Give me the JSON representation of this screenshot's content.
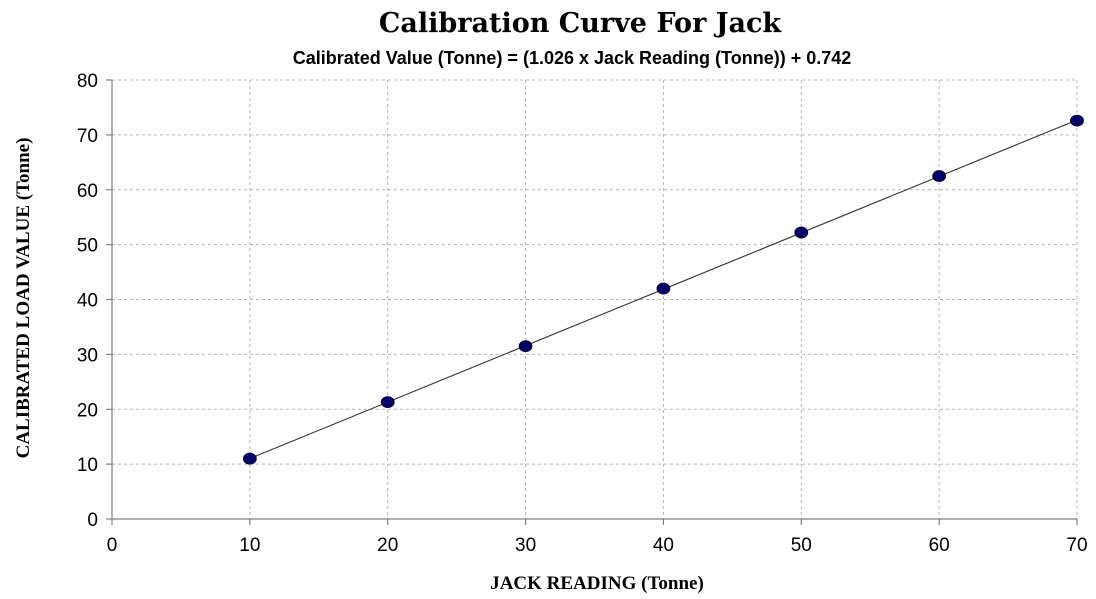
{
  "chart_data": {
    "type": "scatter",
    "title": "Calibration Curve For Jack",
    "subtitle": "Calibrated Value (Tonne) = (1.026 x Jack Reading (Tonne)) + 0.742",
    "xlabel": "JACK READING (Tonne)",
    "ylabel": "CALIBRATED LOAD VALUE (Tonne)",
    "xlim": [
      0,
      70
    ],
    "ylim": [
      0,
      80
    ],
    "x_ticks": [
      0,
      10,
      20,
      30,
      40,
      50,
      60,
      70
    ],
    "y_ticks": [
      0,
      10,
      20,
      30,
      40,
      50,
      60,
      70,
      80
    ],
    "grid": true,
    "series": [
      {
        "x": [
          10,
          20,
          30,
          40,
          50,
          60,
          70
        ],
        "y": [
          11.0,
          21.3,
          31.5,
          42.0,
          52.2,
          62.5,
          72.6
        ],
        "color": "#000066",
        "trendline": true,
        "trendline_color": "#333333"
      }
    ]
  }
}
